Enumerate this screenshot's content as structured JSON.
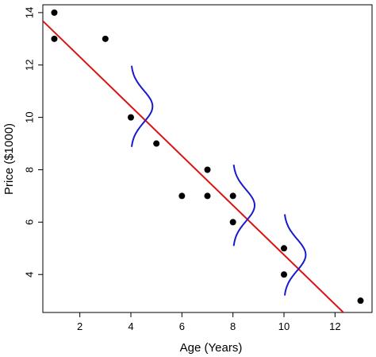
{
  "chart_data": {
    "type": "scatter",
    "title": "",
    "xlabel": "Age (Years)",
    "ylabel": "Price ($1000)",
    "xlim": [
      0.55,
      13.45
    ],
    "ylim": [
      2.55,
      14.3
    ],
    "x_ticks": [
      2,
      4,
      6,
      8,
      10,
      12
    ],
    "y_ticks": [
      4,
      6,
      8,
      10,
      12,
      14
    ],
    "grid": false,
    "points": [
      {
        "x": 1,
        "y": 14
      },
      {
        "x": 1,
        "y": 13
      },
      {
        "x": 3,
        "y": 13
      },
      {
        "x": 4,
        "y": 10
      },
      {
        "x": 5,
        "y": 9
      },
      {
        "x": 6,
        "y": 7
      },
      {
        "x": 7,
        "y": 8
      },
      {
        "x": 7,
        "y": 7
      },
      {
        "x": 8,
        "y": 7
      },
      {
        "x": 8,
        "y": 6
      },
      {
        "x": 10,
        "y": 5
      },
      {
        "x": 10,
        "y": 4
      },
      {
        "x": 13,
        "y": 3
      }
    ],
    "regression_line": {
      "intercept": 14.2,
      "slope": -0.945
    },
    "error_curves": [
      {
        "x": 4
      },
      {
        "x": 8
      },
      {
        "x": 10
      }
    ],
    "colors": {
      "points": "#000000",
      "regression_line": "#dd1111",
      "error_curves": "#1a1acc",
      "axes": "#000000"
    }
  }
}
